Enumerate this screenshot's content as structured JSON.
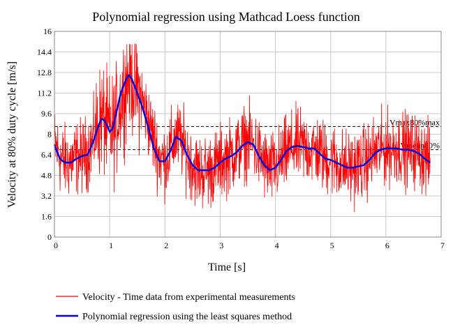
{
  "chart_data": {
    "type": "line",
    "title": "Polynomial regression using Mathcad Loess function",
    "xlabel": "Time [s]",
    "ylabel": "Velocity at 80% duty cycle [m/s]",
    "xlim": [
      0,
      7
    ],
    "ylim": [
      0,
      16
    ],
    "xticks": [
      0,
      1,
      2,
      3,
      4,
      5,
      6,
      7
    ],
    "xtick_labels": [
      "0",
      "1",
      "2",
      "3",
      "4",
      "5",
      "6",
      "7"
    ],
    "yticks": [
      0,
      1.6,
      3.2,
      4.8,
      6.4,
      8,
      9.6,
      11.2,
      12.8,
      14.4,
      16
    ],
    "ytick_labels": [
      "0",
      "1.6",
      "3.2",
      "4.8",
      "6.4",
      "8",
      "9.6",
      "11.2",
      "12.8",
      "14.4",
      "16"
    ],
    "grid": true,
    "ref_lines": [
      {
        "name": "Vmax",
        "label": "Vmax80%max",
        "y": 8.6
      },
      {
        "name": "Vmean",
        "label": "Vmean80%",
        "y": 6.8
      }
    ],
    "series": [
      {
        "name": "Velocity - Time data from experimental measurements",
        "color": "#ff0000",
        "style": "noisy",
        "noise_amplitude": 1.4,
        "x": [
          0,
          0.05,
          0.1,
          0.2,
          0.3,
          0.4,
          0.5,
          0.6,
          0.7,
          0.8,
          0.85,
          0.9,
          0.95,
          1.0,
          1.1,
          1.2,
          1.3,
          1.35,
          1.4,
          1.5,
          1.6,
          1.7,
          1.8,
          1.9,
          2.0,
          2.1,
          2.2,
          2.3,
          2.4,
          2.5,
          2.6,
          2.7,
          2.8,
          2.9,
          3.0,
          3.1,
          3.2,
          3.3,
          3.4,
          3.5,
          3.6,
          3.7,
          3.8,
          3.9,
          4.0,
          4.1,
          4.2,
          4.3,
          4.4,
          4.5,
          4.6,
          4.7,
          4.8,
          4.9,
          5.0,
          5.1,
          5.2,
          5.3,
          5.4,
          5.5,
          5.6,
          5.7,
          5.8,
          5.9,
          6.0,
          6.1,
          6.2,
          6.3,
          6.4,
          6.5,
          6.6,
          6.7,
          6.8
        ],
        "values": [
          7.2,
          6.8,
          6.2,
          5.8,
          5.9,
          6.2,
          6.3,
          6.6,
          7.5,
          8.8,
          9.4,
          9.0,
          8.5,
          8.2,
          8.6,
          10.6,
          12.0,
          12.6,
          12.3,
          11.5,
          10.5,
          9.0,
          7.6,
          6.2,
          5.9,
          6.8,
          7.8,
          7.5,
          6.4,
          5.6,
          5.1,
          5.1,
          5.2,
          5.4,
          5.8,
          6.1,
          6.4,
          6.7,
          7.2,
          7.5,
          7.2,
          6.4,
          5.7,
          5.2,
          5.4,
          5.9,
          6.5,
          7.0,
          7.1,
          7.0,
          6.9,
          6.8,
          6.6,
          6.1,
          6.1,
          5.8,
          5.6,
          5.4,
          5.4,
          5.6,
          5.8,
          6.1,
          6.6,
          6.8,
          6.9,
          6.9,
          7.0,
          6.9,
          6.8,
          6.7,
          6.6,
          6.2,
          5.9
        ]
      },
      {
        "name": "Polynomial regression using the least squares method",
        "color": "#0000dd",
        "style": "smooth",
        "x": [
          0,
          0.05,
          0.1,
          0.15,
          0.2,
          0.3,
          0.4,
          0.5,
          0.6,
          0.7,
          0.8,
          0.85,
          0.9,
          0.95,
          1.0,
          1.05,
          1.1,
          1.2,
          1.3,
          1.35,
          1.4,
          1.5,
          1.6,
          1.7,
          1.8,
          1.9,
          2.0,
          2.1,
          2.2,
          2.3,
          2.4,
          2.5,
          2.6,
          2.7,
          2.8,
          2.9,
          3.0,
          3.1,
          3.2,
          3.3,
          3.4,
          3.5,
          3.6,
          3.7,
          3.8,
          3.9,
          4.0,
          4.1,
          4.2,
          4.3,
          4.4,
          4.5,
          4.6,
          4.7,
          4.8,
          4.9,
          5.0,
          5.1,
          5.2,
          5.3,
          5.4,
          5.5,
          5.6,
          5.7,
          5.8,
          5.9,
          6.0,
          6.1,
          6.2,
          6.3,
          6.4,
          6.5,
          6.6,
          6.7,
          6.8
        ],
        "values": [
          7.2,
          6.6,
          6.1,
          5.9,
          5.8,
          5.8,
          6.1,
          6.3,
          6.4,
          7.4,
          8.7,
          9.2,
          9.1,
          8.7,
          8.2,
          8.4,
          9.3,
          11.2,
          12.3,
          12.6,
          12.3,
          11.2,
          10.0,
          8.5,
          6.9,
          5.9,
          5.9,
          6.7,
          7.8,
          7.5,
          6.4,
          5.6,
          5.2,
          5.2,
          5.2,
          5.4,
          5.8,
          6.1,
          6.3,
          6.6,
          7.1,
          7.4,
          7.2,
          6.3,
          5.6,
          5.2,
          5.4,
          6.0,
          6.7,
          7.0,
          7.1,
          7.0,
          6.9,
          6.9,
          6.5,
          6.1,
          6.0,
          5.8,
          5.6,
          5.4,
          5.4,
          5.5,
          5.6,
          6.0,
          6.5,
          6.8,
          6.9,
          6.9,
          6.9,
          6.8,
          6.8,
          6.7,
          6.5,
          6.1,
          5.8
        ]
      }
    ]
  }
}
